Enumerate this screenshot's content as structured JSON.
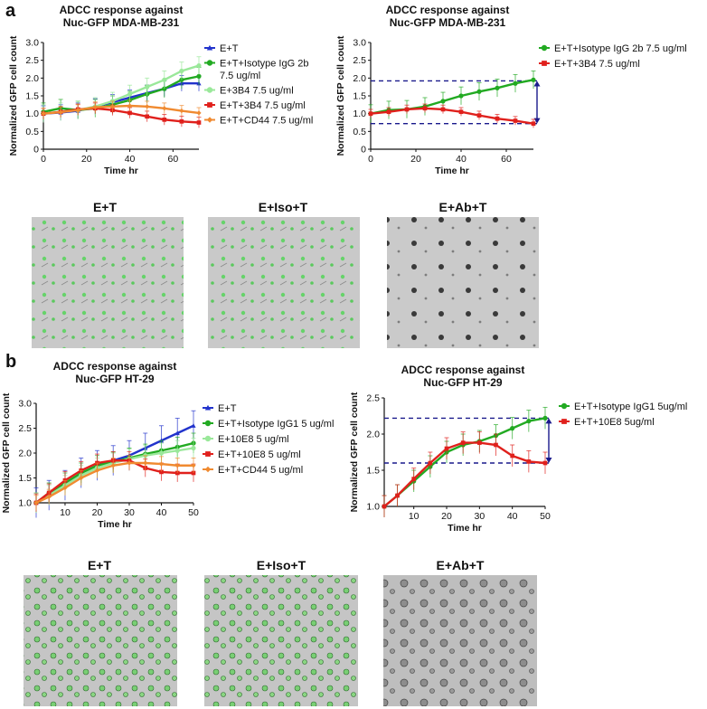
{
  "panel_labels": {
    "a": "a",
    "b": "b"
  },
  "micro_labels": {
    "a": [
      "E+T",
      "E+Iso+T",
      "E+Ab+T"
    ],
    "b": [
      "E+T",
      "E+Iso+T",
      "E+Ab+T"
    ]
  },
  "colors": {
    "blue": "#2233cc",
    "green": "#22aa22",
    "lightgreen": "#9ae89a",
    "red": "#e0201c",
    "orange": "#f08a30",
    "arrow": "#1a1a8c"
  },
  "chart_data": [
    {
      "id": "a1",
      "type": "line",
      "title": [
        "ADCC response against",
        "Nuc-GFP MDA-MB-231"
      ],
      "xlabel": "Time hr",
      "ylabel": "Normalized GFP cell count",
      "xlim": [
        0,
        72
      ],
      "ylim": [
        0,
        3.0
      ],
      "xticks": [
        0,
        20,
        40,
        60
      ],
      "yticks": [
        0,
        0.5,
        1.0,
        1.5,
        2.0,
        2.5,
        3.0
      ],
      "ytick_labels": [
        "0",
        "0.5",
        "1.0",
        "1.5",
        "2.0",
        "2.5",
        "3.0"
      ],
      "legend": [
        "E+T",
        "E+T+Isotype IgG 2b",
        "7.5 ug/ml",
        "E+3B4 7.5 ug/ml",
        "E+T+3B4 7.5 ug/ml",
        "E+T+CD44 7.5 ug/ml"
      ],
      "series": [
        {
          "name": "E+T",
          "color": "blue",
          "marker": "triangle",
          "x": [
            0,
            8,
            16,
            24,
            32,
            40,
            48,
            56,
            64,
            72
          ],
          "y": [
            1.0,
            1.03,
            1.08,
            1.2,
            1.32,
            1.45,
            1.58,
            1.7,
            1.85,
            1.85
          ],
          "err": 0.22
        },
        {
          "name": "E+T+Isotype IgG 2b 7.5 ug/ml",
          "color": "green",
          "marker": "circle",
          "x": [
            0,
            8,
            16,
            24,
            32,
            40,
            48,
            56,
            64,
            72
          ],
          "y": [
            1.05,
            1.15,
            1.1,
            1.15,
            1.25,
            1.38,
            1.55,
            1.7,
            1.95,
            2.05
          ],
          "err": 0.25
        },
        {
          "name": "E+3B4 7.5 ug/ml",
          "color": "lightgreen",
          "marker": "circle",
          "x": [
            0,
            8,
            16,
            24,
            32,
            40,
            48,
            56,
            64,
            72
          ],
          "y": [
            1.0,
            1.05,
            1.1,
            1.2,
            1.35,
            1.55,
            1.75,
            1.95,
            2.2,
            2.35
          ],
          "err": 0.25
        },
        {
          "name": "E+T+3B4 7.5 ug/ml",
          "color": "red",
          "marker": "square",
          "x": [
            0,
            8,
            16,
            24,
            32,
            40,
            48,
            56,
            64,
            72
          ],
          "y": [
            1.0,
            1.05,
            1.12,
            1.15,
            1.1,
            1.02,
            0.92,
            0.83,
            0.78,
            0.75
          ],
          "err": 0.15
        },
        {
          "name": "E+T+CD44 7.5 ug/ml",
          "color": "orange",
          "marker": "diamond",
          "x": [
            0,
            8,
            16,
            24,
            32,
            40,
            48,
            56,
            64,
            72
          ],
          "y": [
            1.0,
            1.04,
            1.1,
            1.18,
            1.2,
            1.22,
            1.2,
            1.15,
            1.08,
            1.02
          ],
          "err": 0.15
        }
      ]
    },
    {
      "id": "a2",
      "type": "line",
      "title": [
        "ADCC response against",
        "Nuc-GFP MDA-MB-231"
      ],
      "xlabel": "Time hr",
      "ylabel": "Normalized GFP cell count",
      "xlim": [
        0,
        72
      ],
      "ylim": [
        0,
        3.0
      ],
      "xticks": [
        0,
        20,
        40,
        60
      ],
      "yticks": [
        0,
        0.5,
        1.0,
        1.5,
        2.0,
        2.5,
        3.0
      ],
      "ytick_labels": [
        "0",
        "0.5",
        "1.0",
        "1.5",
        "2.0",
        "2.5",
        "3.0"
      ],
      "legend": [
        "E+T+Isotype IgG 2b 7.5 ug/ml",
        "E+T+3B4 7.5 ug/ml"
      ],
      "reference_lines": [
        1.92,
        0.72
      ],
      "series": [
        {
          "name": "E+T+Isotype IgG 2b 7.5 ug/ml",
          "color": "green",
          "marker": "circle",
          "x": [
            0,
            8,
            16,
            24,
            32,
            40,
            48,
            56,
            64,
            72
          ],
          "y": [
            1.0,
            1.1,
            1.12,
            1.2,
            1.35,
            1.5,
            1.62,
            1.72,
            1.85,
            1.95
          ],
          "err": 0.25
        },
        {
          "name": "E+T+3B4 7.5 ug/ml",
          "color": "red",
          "marker": "square",
          "x": [
            0,
            8,
            16,
            24,
            32,
            40,
            48,
            56,
            64,
            72
          ],
          "y": [
            1.0,
            1.05,
            1.12,
            1.15,
            1.12,
            1.05,
            0.95,
            0.86,
            0.8,
            0.72
          ],
          "err": 0.12
        }
      ]
    },
    {
      "id": "b1",
      "type": "line",
      "title": [
        "ADCC response against",
        "Nuc-GFP HT-29"
      ],
      "xlabel": "Time hr",
      "ylabel": "Normalized GFP cell count",
      "xlim": [
        1,
        50
      ],
      "ylim": [
        1.0,
        3.0
      ],
      "xticks": [
        10,
        20,
        30,
        40,
        50
      ],
      "yticks": [
        1.0,
        1.5,
        2.0,
        2.5,
        3.0
      ],
      "ytick_labels": [
        "1.0",
        "1.5",
        "2.0",
        "2.5",
        "3.0"
      ],
      "legend": [
        "E+T",
        "E+T+Isotype IgG1 5 ug/ml",
        "E+10E8 5 ug/ml",
        "E+T+10E8 5 ug/ml",
        "E+T+CD44 5 ug/ml"
      ],
      "series": [
        {
          "name": "E+T",
          "color": "blue",
          "marker": "triangle",
          "x": [
            1,
            5,
            10,
            15,
            20,
            25,
            30,
            35,
            40,
            45,
            50
          ],
          "y": [
            1.0,
            1.15,
            1.35,
            1.6,
            1.75,
            1.85,
            1.95,
            2.1,
            2.25,
            2.4,
            2.55
          ],
          "err": 0.3
        },
        {
          "name": "E+T+Isotype IgG1 5 ug/ml",
          "color": "green",
          "marker": "circle",
          "x": [
            1,
            5,
            10,
            15,
            20,
            25,
            30,
            35,
            40,
            45,
            50
          ],
          "y": [
            1.0,
            1.2,
            1.4,
            1.6,
            1.75,
            1.82,
            1.9,
            1.98,
            2.05,
            2.12,
            2.2
          ],
          "err": 0.2
        },
        {
          "name": "E+10E8 5 ug/ml",
          "color": "lightgreen",
          "marker": "circle",
          "x": [
            1,
            5,
            10,
            15,
            20,
            25,
            30,
            35,
            40,
            45,
            50
          ],
          "y": [
            1.0,
            1.15,
            1.35,
            1.55,
            1.7,
            1.8,
            1.88,
            1.95,
            2.0,
            2.05,
            2.1
          ],
          "err": 0.2
        },
        {
          "name": "E+T+10E8 5 ug/ml",
          "color": "red",
          "marker": "square",
          "x": [
            1,
            5,
            10,
            15,
            20,
            25,
            30,
            35,
            40,
            45,
            50
          ],
          "y": [
            1.0,
            1.2,
            1.45,
            1.65,
            1.8,
            1.85,
            1.85,
            1.7,
            1.62,
            1.6,
            1.6
          ],
          "err": 0.18
        },
        {
          "name": "E+T+CD44 5 ug/ml",
          "color": "orange",
          "marker": "diamond",
          "x": [
            1,
            5,
            10,
            15,
            20,
            25,
            30,
            35,
            40,
            45,
            50
          ],
          "y": [
            1.0,
            1.12,
            1.3,
            1.5,
            1.65,
            1.75,
            1.8,
            1.8,
            1.78,
            1.75,
            1.75
          ],
          "err": 0.15
        }
      ]
    },
    {
      "id": "b2",
      "type": "line",
      "title": [
        "ADCC response against",
        "Nuc-GFP HT-29"
      ],
      "xlabel": "Time hr",
      "ylabel": "Normalized GFP cell count",
      "xlim": [
        1,
        50
      ],
      "ylim": [
        1.0,
        2.5
      ],
      "xticks": [
        10,
        20,
        30,
        40,
        50
      ],
      "yticks": [
        1.0,
        1.5,
        2.0,
        2.5
      ],
      "ytick_labels": [
        "1.0",
        "1.5",
        "2.0",
        "2.5"
      ],
      "legend": [
        "E+T+Isotype IgG1 5ug/ml",
        "E+T+10E8 5ug/ml"
      ],
      "reference_lines": [
        2.22,
        1.6
      ],
      "series": [
        {
          "name": "E+T+Isotype IgG1 5ug/ml",
          "color": "green",
          "marker": "circle",
          "x": [
            1,
            5,
            10,
            15,
            20,
            25,
            30,
            35,
            40,
            45,
            50
          ],
          "y": [
            1.0,
            1.15,
            1.35,
            1.55,
            1.75,
            1.85,
            1.9,
            1.98,
            2.08,
            2.18,
            2.22
          ],
          "err": 0.15
        },
        {
          "name": "E+T+10E8 5ug/ml",
          "color": "red",
          "marker": "square",
          "x": [
            1,
            5,
            10,
            15,
            20,
            25,
            30,
            35,
            40,
            45,
            50
          ],
          "y": [
            1.0,
            1.15,
            1.38,
            1.6,
            1.8,
            1.88,
            1.88,
            1.85,
            1.7,
            1.62,
            1.6
          ],
          "err": 0.15
        }
      ]
    }
  ]
}
